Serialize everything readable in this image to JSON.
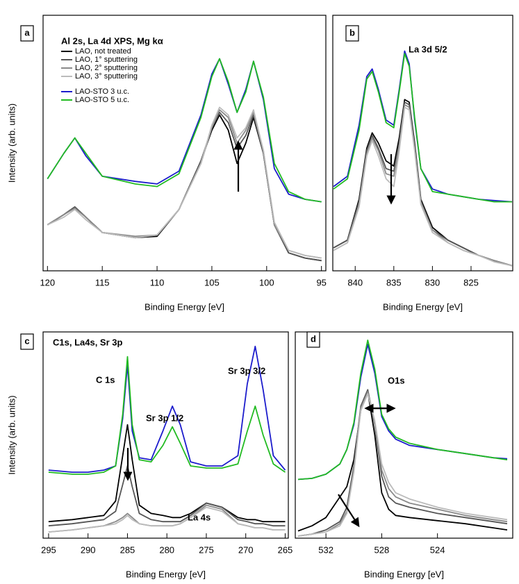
{
  "chart_data": [
    {
      "type": "line",
      "panel_label": "a",
      "x_label": "Binding Energy [eV]",
      "y_label": "Intensity (arb. units)",
      "annotations": [
        "Al 2s, La 4d XPS, Mg kα"
      ],
      "xlim": [
        120.4,
        94.6
      ],
      "xticks": [
        120,
        115,
        110,
        105,
        100,
        95
      ],
      "ylim": [
        0,
        100
      ],
      "x": [
        120,
        118.5,
        117.5,
        116.5,
        115,
        112,
        110,
        108,
        106,
        105,
        104.3,
        103.5,
        102.7,
        101.9,
        101.2,
        100.3,
        99.3,
        98,
        96.5,
        95
      ],
      "series": [
        {
          "name": "LAO, not treated",
          "color": "#000000",
          "values": [
            18,
            22,
            25,
            21,
            15,
            13,
            13.5,
            24,
            43,
            55,
            61,
            55,
            42,
            50,
            60,
            46,
            18,
            7,
            5,
            4
          ]
        },
        {
          "name": "LAO, 1° sputtering",
          "color": "#555555",
          "values": [
            18,
            22,
            25,
            21,
            15,
            13,
            14,
            24,
            43,
            56,
            62,
            58,
            48,
            53,
            61,
            46,
            18,
            7,
            5,
            4
          ]
        },
        {
          "name": "LAO, 2° sputtering",
          "color": "#8a8a8a",
          "values": [
            18,
            22,
            24.5,
            21,
            15,
            13.5,
            14,
            24,
            42,
            56,
            63,
            60,
            50,
            55,
            62,
            47,
            18,
            8,
            6,
            5
          ]
        },
        {
          "name": "LAO, 3° sputtering",
          "color": "#bbbbbb",
          "values": [
            18,
            21,
            24,
            20,
            15,
            13,
            14,
            24,
            42,
            57,
            64,
            61,
            52,
            56,
            63,
            47,
            19,
            8,
            6,
            5
          ]
        },
        {
          "name": "LAO-STO 3 u.c.",
          "color": "#1c1ccc",
          "values": [
            36,
            46,
            52,
            45,
            37,
            35,
            34,
            39,
            61,
            77,
            83,
            73,
            62,
            71,
            82,
            67,
            40,
            30,
            28,
            27
          ]
        },
        {
          "name": "LAO-STO 5 u.c.",
          "color": "#22bb22",
          "values": [
            36,
            46,
            52,
            46,
            37,
            34,
            33,
            38,
            60,
            76,
            83,
            74,
            62,
            70,
            82,
            68,
            42,
            31,
            28,
            27
          ]
        }
      ]
    },
    {
      "type": "line",
      "panel_label": "b",
      "x_label": "Binding Energy [eV]",
      "annotations": [
        "La 3d 5/2"
      ],
      "xlim": [
        842.9,
        819.6
      ],
      "xticks": [
        840,
        835,
        830,
        825
      ],
      "ylim": [
        0,
        100
      ],
      "x": [
        842.8,
        841,
        839.5,
        838.5,
        837.8,
        837,
        836,
        835,
        834.3,
        833.6,
        833,
        832.3,
        831.5,
        830,
        828,
        826,
        824,
        822,
        819.7
      ],
      "series": [
        {
          "color": "#000000",
          "values": [
            9,
            12,
            28,
            48,
            54,
            50,
            43,
            41,
            52,
            67,
            66,
            50,
            28,
            17,
            12,
            9,
            6,
            4,
            2
          ]
        },
        {
          "color": "#555555",
          "values": [
            9,
            12,
            27,
            47,
            53,
            48,
            40,
            39,
            50,
            66,
            65,
            49,
            27,
            16,
            12,
            9,
            6,
            4,
            2
          ]
        },
        {
          "color": "#8a8a8a",
          "values": [
            8,
            11,
            26,
            46,
            52,
            47,
            38,
            37,
            49,
            65,
            64,
            48,
            27,
            16,
            11,
            8,
            6,
            4,
            2
          ]
        },
        {
          "color": "#bbbbbb",
          "values": [
            8,
            11,
            25,
            45,
            51,
            45,
            36,
            33,
            47,
            64,
            63,
            47,
            26,
            15,
            11,
            8,
            6,
            3.5,
            2
          ]
        },
        {
          "color": "#1c1ccc",
          "values": [
            33,
            37,
            57,
            76,
            79,
            71,
            59,
            57,
            71,
            86,
            81,
            59,
            40,
            32,
            30,
            29,
            28,
            27.5,
            27
          ]
        },
        {
          "color": "#22bb22",
          "values": [
            32,
            36,
            55,
            75,
            78,
            70,
            58,
            56,
            70,
            85,
            80,
            60,
            40,
            31,
            30,
            29,
            28,
            27,
            27
          ]
        }
      ]
    },
    {
      "type": "line",
      "panel_label": "c",
      "x_label": "Binding Energy [eV]",
      "y_label": "Intensity (arb. units)",
      "annotations": [
        "C1s, La4s, Sr 3p",
        "C 1s",
        "Sr 3p 1/2",
        "Sr 3p 3/2",
        "La 4s"
      ],
      "xlim": [
        295.7,
        264.6
      ],
      "xticks": [
        295,
        290,
        285,
        280,
        275,
        270,
        265
      ],
      "ylim": [
        0,
        100
      ],
      "x": [
        295,
        292,
        290,
        288,
        286.5,
        285.6,
        285,
        284.4,
        283.5,
        282,
        280.5,
        279.3,
        278.3,
        277,
        275,
        273,
        271,
        269.8,
        268.8,
        267.8,
        266.5,
        265
      ],
      "series": [
        {
          "color": "#000000",
          "values": [
            8,
            9,
            10,
            11,
            18,
            40,
            55,
            38,
            16,
            12,
            11,
            10,
            10,
            12,
            17,
            15,
            10,
            9,
            9,
            8,
            8,
            8
          ]
        },
        {
          "color": "#555555",
          "values": [
            6,
            7,
            8,
            9,
            13,
            26,
            35,
            25,
            12,
            9,
            8,
            8,
            8,
            11,
            17,
            15,
            9,
            8,
            7,
            7,
            6,
            6
          ]
        },
        {
          "color": "#8a8a8a",
          "values": [
            3,
            4,
            5,
            6,
            8,
            10,
            12,
            10,
            7,
            6,
            6,
            6,
            7,
            10,
            16,
            14,
            7,
            6,
            5,
            5,
            4,
            4
          ]
        },
        {
          "color": "#bbbbbb",
          "values": [
            3,
            4,
            5,
            6,
            7,
            9,
            11,
            9,
            7,
            6,
            6,
            6,
            7,
            10,
            15,
            13,
            7,
            6,
            5,
            5,
            4,
            4
          ]
        },
        {
          "color": "#1c1ccc",
          "values": [
            33,
            32,
            32,
            33,
            35,
            58,
            84,
            52,
            39,
            38,
            52,
            64,
            55,
            37,
            35,
            35,
            40,
            75,
            93,
            72,
            40,
            33
          ]
        },
        {
          "color": "#22bb22",
          "values": [
            32,
            31,
            31,
            32,
            35,
            60,
            88,
            55,
            38,
            37,
            45,
            54,
            46,
            35,
            34,
            34,
            36,
            52,
            64,
            50,
            36,
            32
          ]
        }
      ]
    },
    {
      "type": "line",
      "panel_label": "d",
      "x_label": "Binding Energy [eV]",
      "annotations": [
        "O1s"
      ],
      "xlim": [
        534.2,
        518.6
      ],
      "xticks": [
        532,
        528,
        524
      ],
      "ylim": [
        0,
        100
      ],
      "x": [
        534,
        533,
        532,
        531,
        530.5,
        530,
        529.5,
        529,
        528.5,
        528,
        527.5,
        527,
        526,
        524,
        522,
        520,
        519
      ],
      "series": [
        {
          "color": "#000000",
          "values": [
            3.5,
            6,
            10,
            20,
            25,
            38,
            62,
            71,
            50,
            22,
            14,
            11,
            10,
            8.5,
            7,
            5,
            4
          ]
        },
        {
          "color": "#555555",
          "values": [
            1,
            2,
            4,
            8,
            15,
            35,
            64,
            72,
            55,
            30,
            20,
            17,
            15,
            12,
            10,
            8,
            7
          ]
        },
        {
          "color": "#8a8a8a",
          "values": [
            1,
            2,
            3,
            7,
            13,
            33,
            63,
            71,
            56,
            33,
            24,
            20,
            17,
            14,
            11,
            9,
            8
          ]
        },
        {
          "color": "#bbbbbb",
          "values": [
            1,
            2,
            3,
            6,
            12,
            32,
            62,
            70,
            57,
            36,
            27,
            22,
            19,
            15,
            12,
            10,
            9
          ]
        },
        {
          "color": "#1c1ccc",
          "values": [
            28.5,
            29,
            31,
            36,
            43,
            55,
            78,
            94,
            80,
            59,
            52,
            48,
            45,
            43,
            41,
            39,
            38.5
          ]
        },
        {
          "color": "#22bb22",
          "values": [
            28.5,
            29,
            31,
            36,
            43,
            56,
            80,
            96,
            82,
            60,
            53,
            49,
            46,
            43,
            41,
            39,
            38
          ]
        }
      ]
    }
  ]
}
